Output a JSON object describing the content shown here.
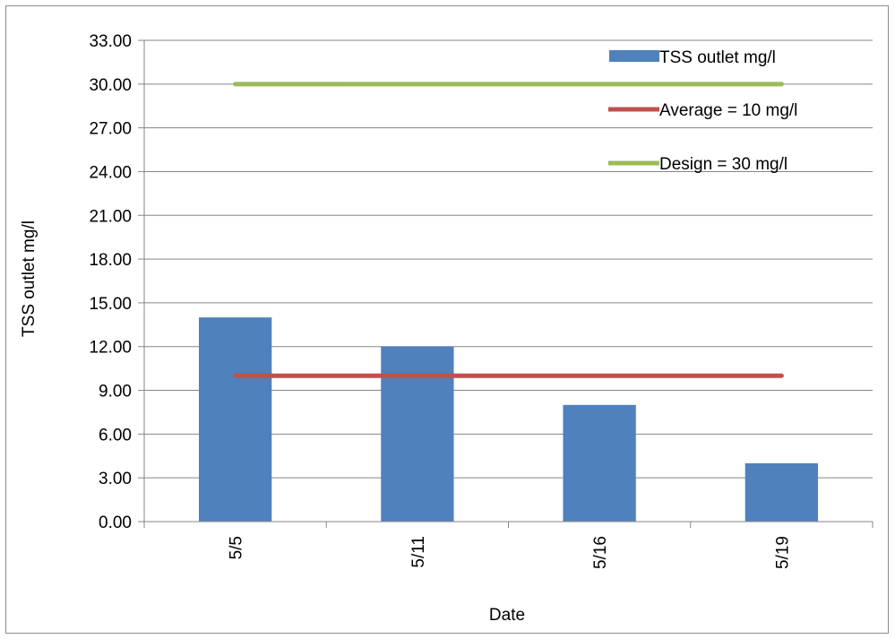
{
  "chart_data": {
    "type": "bar",
    "categories": [
      "5/5",
      "5/11",
      "5/16",
      "5/19"
    ],
    "series": [
      {
        "name": "TSS outlet mg/l",
        "kind": "bar",
        "values": [
          14,
          12,
          8,
          4
        ],
        "color": "#4F81BD"
      },
      {
        "name": "Average = 10 mg/l",
        "kind": "line",
        "values": [
          10,
          10,
          10,
          10
        ],
        "color": "#C0504D"
      },
      {
        "name": "Design = 30 mg/l",
        "kind": "line",
        "values": [
          30,
          30,
          30,
          30
        ],
        "color": "#9BBB59"
      }
    ],
    "xlabel": "Date",
    "ylabel": "TSS outlet mg/l",
    "ylim": [
      0,
      33
    ],
    "y_ticks": [
      "0.00",
      "3.00",
      "6.00",
      "9.00",
      "12.00",
      "15.00",
      "18.00",
      "21.00",
      "24.00",
      "27.00",
      "30.00",
      "33.00"
    ],
    "grid": true,
    "legend_position": "top-right",
    "gridline_color": "#868686",
    "axis_color": "#868686"
  }
}
